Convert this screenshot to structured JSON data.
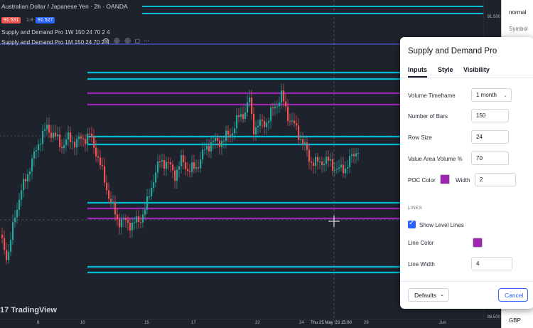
{
  "chart": {
    "title": "Australian Dollar / Japanese Yen · 2h · OANDA",
    "bid": "91.531",
    "spread": "1.8",
    "ask": "91.527",
    "indicator1": "Supply and Demand Pro 1W 150 24 70 2 4",
    "indicator2": "Supply and Demand Pro 1M 150 24 70 2 4",
    "price_top": "91.500",
    "price_bottom": "88.500",
    "brand": "TradingView",
    "time_labels": [
      "8",
      "10",
      "15",
      "17",
      "22",
      "24",
      "Thu 25 May '23 15:00",
      "29",
      "Jun"
    ],
    "colors": {
      "cyan": "#00bcd4",
      "purple": "#9c27b0",
      "up": "#26a69a",
      "down": "#ef5350",
      "background": "#1e222d"
    }
  },
  "side_panel": {
    "top_label": "normal",
    "symbol_label": "Symbol",
    "bottom_label": "GBP"
  },
  "dialog": {
    "title": "Supply and Demand Pro",
    "tabs": [
      "Inputs",
      "Style",
      "Visibility"
    ],
    "active_tab": "Inputs",
    "fields": {
      "volume_timeframe": {
        "label": "Volume Timeframe",
        "value": "1 month"
      },
      "number_of_bars": {
        "label": "Number of Bars",
        "value": "150"
      },
      "row_size": {
        "label": "Row Size",
        "value": "24"
      },
      "value_area_volume": {
        "label": "Value Area Volume %",
        "value": "70"
      },
      "poc_color": {
        "label": "POC Color",
        "color": "#9c27b0"
      },
      "width": {
        "label": "Width",
        "value": "2"
      },
      "lines_section": "LINES",
      "show_level_lines": {
        "label": "Show Level Lines",
        "checked": true
      },
      "line_color": {
        "label": "Line Color",
        "color": "#9c27b0"
      },
      "line_width": {
        "label": "Line Width",
        "value": "4"
      }
    },
    "defaults_button": "Defaults",
    "cancel_button": "Cancel"
  }
}
